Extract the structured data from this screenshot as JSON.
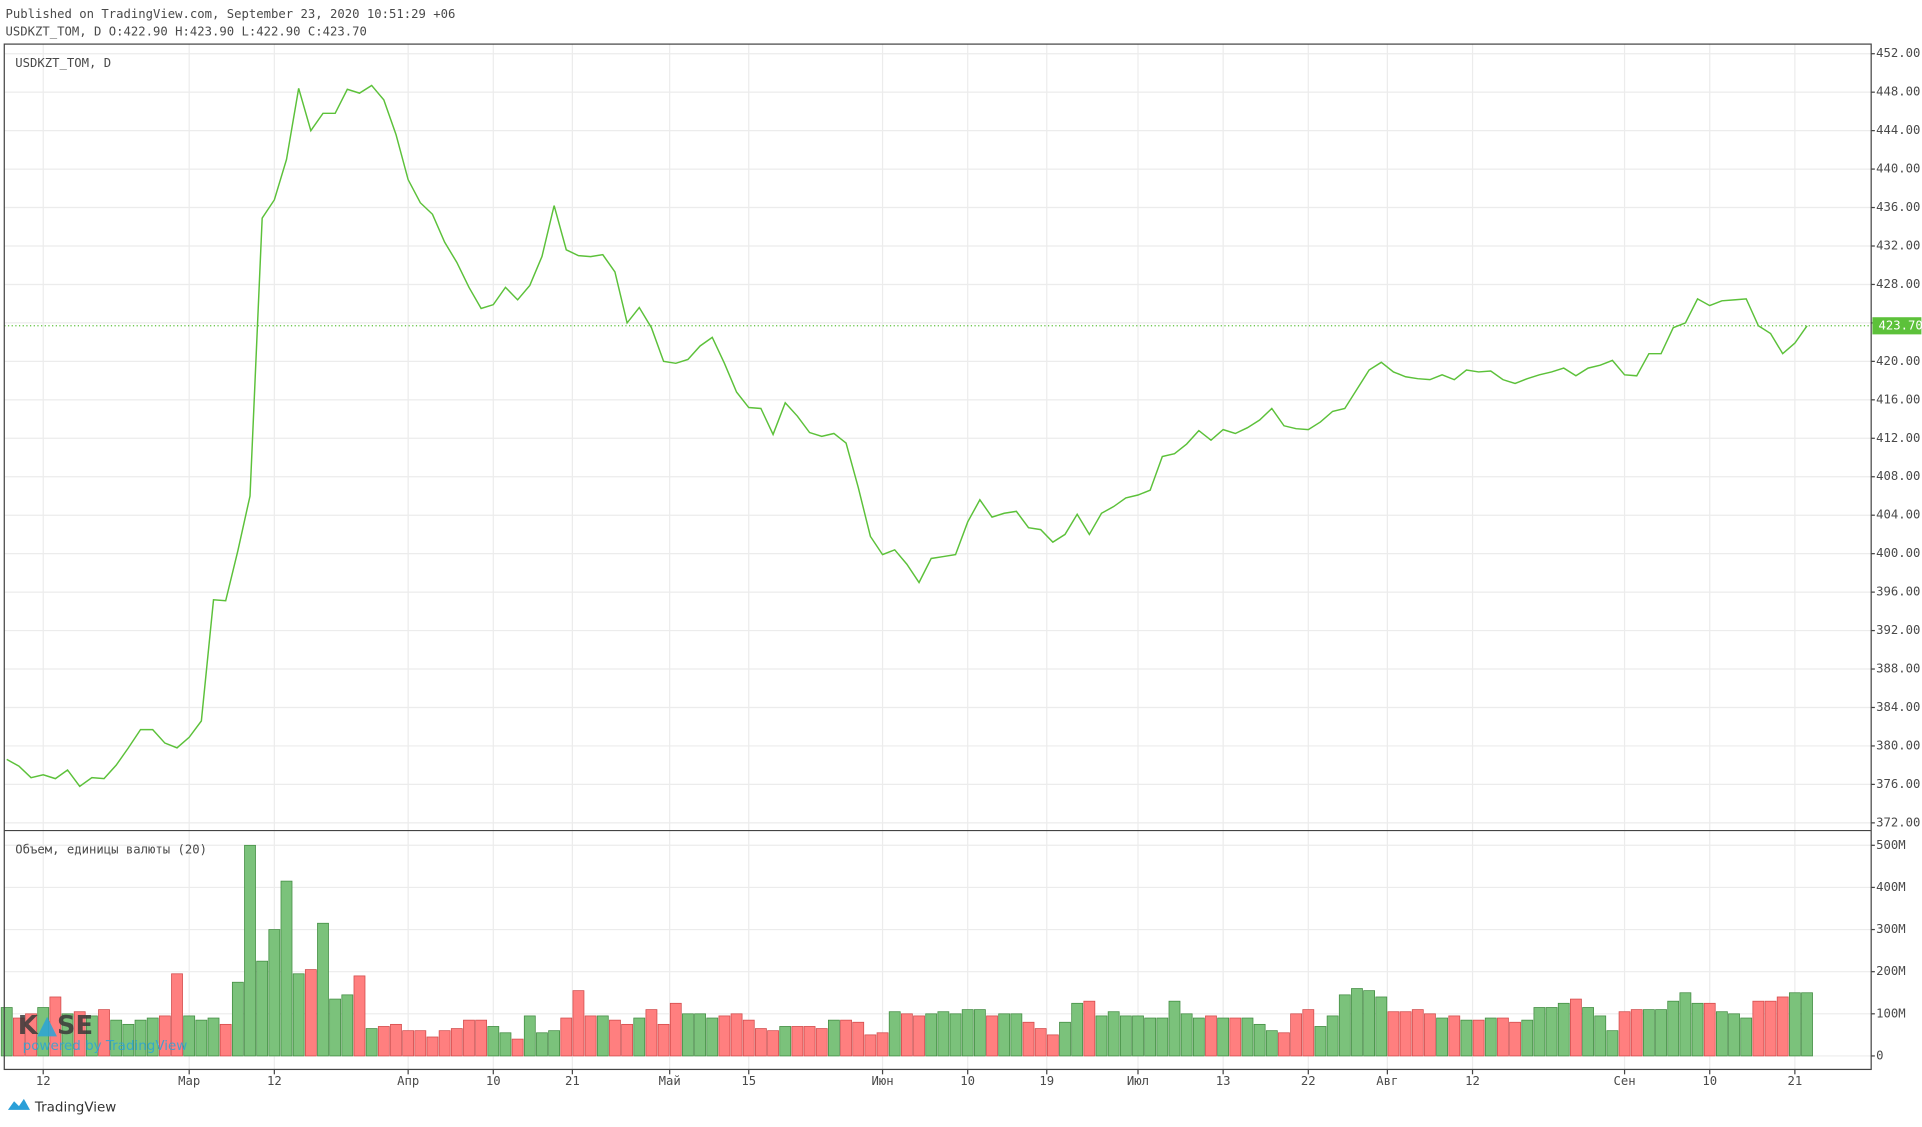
{
  "header": {
    "published": "Published on TradingView.com, September 23, 2020 10:51:29 +06",
    "ohlc": "USDKZT_TOM, D O:422.90 H:423.90 L:422.90 C:423.70"
  },
  "watermark": {
    "left": "K",
    "right": "SE",
    "subtitle": "powered by TradingView"
  },
  "footer": {
    "brand": "TradingView"
  },
  "chart_data": [
    {
      "type": "line",
      "label": "USDKZT_TOM, D",
      "color": "#5cc13a",
      "grid": true,
      "values": [
        378.6,
        377.9,
        376.7,
        377,
        376.6,
        377.5,
        375.8,
        376.7,
        376.6,
        378,
        379.8,
        381.7,
        381.7,
        380.3,
        379.8,
        380.9,
        382.6,
        395.2,
        395.1,
        400.3,
        406,
        434.9,
        436.8,
        441,
        448.4,
        444,
        445.8,
        445.8,
        448.3,
        447.9,
        448.7,
        447.2,
        443.6,
        438.9,
        436.5,
        435.3,
        432.4,
        430.3,
        427.7,
        425.5,
        425.9,
        427.7,
        426.4,
        427.9,
        430.9,
        436.2,
        431.6,
        431,
        430.9,
        431.1,
        429.3,
        424,
        425.6,
        423.5,
        420,
        419.8,
        420.2,
        421.6,
        422.5,
        419.8,
        416.8,
        415.2,
        415.1,
        412.4,
        415.7,
        414.3,
        412.6,
        412.2,
        412.5,
        411.5,
        406.9,
        401.8,
        399.9,
        400.4,
        398.9,
        397,
        399.5,
        399.7,
        399.9,
        403.3,
        405.6,
        403.8,
        404.2,
        404.4,
        402.7,
        402.5,
        401.2,
        402,
        404.1,
        402,
        404.2,
        404.9,
        405.8,
        406.1,
        406.6,
        410.1,
        410.4,
        411.4,
        412.8,
        411.8,
        412.9,
        412.5,
        413.1,
        413.9,
        415.1,
        413.3,
        413,
        412.9,
        413.7,
        414.8,
        415.1,
        417.1,
        419.1,
        419.9,
        418.9,
        418.4,
        418.2,
        418.1,
        418.6,
        418.1,
        419.1,
        418.9,
        419,
        418.1,
        417.7,
        418.2,
        418.6,
        418.9,
        419.3,
        418.5,
        419.3,
        419.6,
        420.1,
        418.6,
        418.5,
        420.8,
        420.8,
        423.5,
        424,
        426.5,
        425.8,
        426.3,
        426.4,
        426.5,
        423.7,
        422.9,
        420.8,
        421.9,
        423.7
      ],
      "last_value_label": "423.70",
      "ylim": [
        371.2,
        453.0
      ],
      "yticks": [
        {
          "value": 372,
          "label": "372.00"
        },
        {
          "value": 376,
          "label": "376.00"
        },
        {
          "value": 380,
          "label": "380.00"
        },
        {
          "value": 384,
          "label": "384.00"
        },
        {
          "value": 388,
          "label": "388.00"
        },
        {
          "value": 392,
          "label": "392.00"
        },
        {
          "value": 396,
          "label": "396.00"
        },
        {
          "value": 400,
          "label": "400.00"
        },
        {
          "value": 404,
          "label": "404.00"
        },
        {
          "value": 408,
          "label": "408.00"
        },
        {
          "value": 412,
          "label": "412.00"
        },
        {
          "value": 416,
          "label": "416.00"
        },
        {
          "value": 420,
          "label": "420.00"
        },
        {
          "value": 424,
          "label": "424.00"
        },
        {
          "value": 428,
          "label": "428.00"
        },
        {
          "value": 432,
          "label": "432.00"
        },
        {
          "value": 436,
          "label": "436.00"
        },
        {
          "value": 440,
          "label": "440.00"
        },
        {
          "value": 444,
          "label": "444.00"
        },
        {
          "value": 448,
          "label": "448.00"
        },
        {
          "value": 452,
          "label": "452.00"
        }
      ]
    },
    {
      "type": "bar",
      "label": "Объем, единицы валюты (20)",
      "up_color": "#7bc27b",
      "down_color": "#ff7f7f",
      "grid": true,
      "values": [
        115,
        90,
        100,
        115,
        140,
        100,
        105,
        95,
        110,
        85,
        75,
        85,
        90,
        95,
        195,
        95,
        85,
        90,
        75,
        175,
        500,
        225,
        300,
        415,
        195,
        205,
        315,
        135,
        145,
        190,
        65,
        70,
        75,
        60,
        60,
        45,
        60,
        65,
        85,
        85,
        70,
        55,
        40,
        95,
        55,
        60,
        90,
        155,
        95,
        95,
        85,
        75,
        90,
        110,
        75,
        125,
        100,
        100,
        90,
        95,
        100,
        85,
        65,
        60,
        70,
        70,
        70,
        65,
        85,
        85,
        80,
        50,
        55,
        105,
        100,
        95,
        100,
        105,
        100,
        110,
        110,
        95,
        100,
        100,
        80,
        65,
        50,
        80,
        125,
        130,
        95,
        105,
        95,
        95,
        90,
        90,
        130,
        100,
        90,
        95,
        90,
        90,
        90,
        75,
        60,
        55,
        100,
        110,
        70,
        95,
        145,
        160,
        155,
        140,
        105,
        105,
        110,
        100,
        90,
        95,
        85,
        85,
        90,
        90,
        80,
        85,
        115,
        115,
        125,
        135,
        115,
        95,
        60,
        105,
        110,
        110,
        110,
        130,
        150,
        125,
        125,
        105,
        100,
        90,
        130,
        130,
        140,
        150,
        150
      ],
      "ylim": [
        -32,
        535
      ],
      "yticks": [
        0,
        {
          "value": 100,
          "label": "100M"
        },
        {
          "value": 200,
          "label": "200M"
        },
        {
          "value": 300,
          "label": "300M"
        },
        {
          "value": 400,
          "label": "400M"
        },
        {
          "value": 500,
          "label": "500M"
        }
      ],
      "xticks": [
        {
          "value": 3,
          "label": "12"
        },
        {
          "value": 15,
          "label": "Мар"
        },
        {
          "value": 22,
          "label": "12"
        },
        {
          "value": 33,
          "label": "Апр"
        },
        {
          "value": 40,
          "label": "10"
        },
        {
          "value": 46.5,
          "label": "21"
        },
        {
          "value": 54.5,
          "label": "Май"
        },
        {
          "value": 61,
          "label": "15"
        },
        {
          "value": 72,
          "label": "Июн"
        },
        {
          "value": 79,
          "label": "10"
        },
        {
          "value": 85.5,
          "label": "19"
        },
        {
          "value": 93,
          "label": "Июл"
        },
        {
          "value": 100,
          "label": "13"
        },
        {
          "value": 107,
          "label": "22"
        },
        {
          "value": 113.5,
          "label": "Авг"
        },
        {
          "value": 120.5,
          "label": "12"
        },
        {
          "value": 133,
          "label": "Сен"
        },
        {
          "value": 140,
          "label": "10"
        },
        {
          "value": 147,
          "label": "21"
        }
      ]
    }
  ]
}
